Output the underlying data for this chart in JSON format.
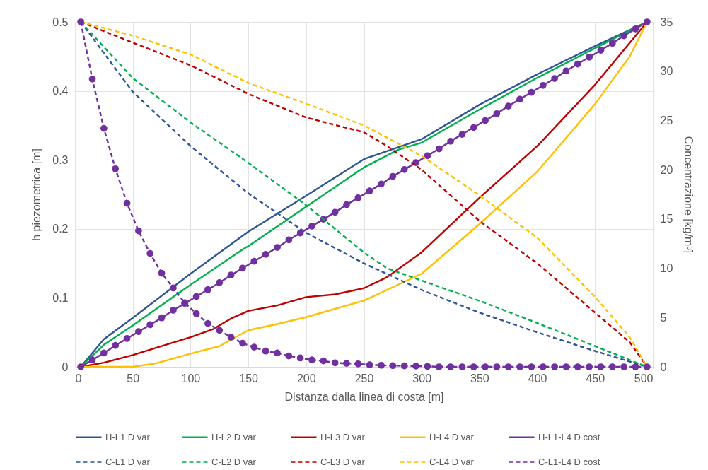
{
  "chart_data": {
    "type": "line",
    "xlabel": "Distanza dalla linea di costa [m]",
    "ylabel": "h piezometrica [m]",
    "y2label": "Concentrazione [kg/m³]",
    "xlim": [
      0,
      500
    ],
    "xticks": [
      0,
      50,
      100,
      150,
      200,
      250,
      300,
      350,
      400,
      450,
      500
    ],
    "ylim": [
      0,
      0.5
    ],
    "yticks": [
      0,
      0.1,
      0.2,
      0.3,
      0.4,
      0.5
    ],
    "y2lim": [
      0,
      35
    ],
    "y2ticks": [
      0,
      5,
      10,
      15,
      20,
      25,
      30,
      35
    ],
    "grid": true,
    "legend": "bottom",
    "series": [
      {
        "name": "H-L1 D var",
        "color": "#2f5597",
        "line_style": "solid",
        "marker": "none",
        "x": [
          5,
          25,
          50,
          100,
          150,
          200,
          250,
          300,
          350,
          400,
          450,
          495
        ],
        "values": [
          0,
          0.04,
          0.071,
          0.135,
          0.196,
          0.248,
          0.301,
          0.33,
          0.38,
          0.424,
          0.465,
          0.5
        ]
      },
      {
        "name": "H-L2 D var",
        "color": "#00b050",
        "line_style": "solid",
        "marker": "none",
        "x": [
          5,
          25,
          50,
          100,
          145,
          150,
          200,
          250,
          280,
          300,
          350,
          400,
          450,
          495
        ],
        "values": [
          0,
          0.032,
          0.06,
          0.119,
          0.17,
          0.175,
          0.232,
          0.289,
          0.315,
          0.325,
          0.373,
          0.419,
          0.462,
          0.5
        ]
      },
      {
        "name": "H-L3 D var",
        "color": "#c00000",
        "line_style": "solid",
        "marker": "none",
        "x": [
          5,
          25,
          50,
          75,
          100,
          120,
          135,
          150,
          175,
          200,
          225,
          250,
          270,
          300,
          350,
          400,
          450,
          495
        ],
        "values": [
          0,
          0.006,
          0.017,
          0.03,
          0.043,
          0.055,
          0.07,
          0.081,
          0.089,
          0.101,
          0.105,
          0.114,
          0.13,
          0.166,
          0.245,
          0.32,
          0.409,
          0.5
        ]
      },
      {
        "name": "H-L4 D var",
        "color": "#ffc000",
        "line_style": "solid",
        "marker": "none",
        "x": [
          5,
          50,
          70,
          100,
          125,
          150,
          175,
          200,
          250,
          300,
          350,
          400,
          450,
          480,
          495
        ],
        "values": [
          0,
          0,
          0.005,
          0.019,
          0.03,
          0.053,
          0.062,
          0.072,
          0.096,
          0.135,
          0.207,
          0.283,
          0.381,
          0.45,
          0.5
        ]
      },
      {
        "name": "H-L1-L4 D cost",
        "color": "#7030a0",
        "line_style": "solid",
        "marker": "circle",
        "x": [
          5,
          15,
          25,
          35,
          45,
          55,
          65,
          75,
          85,
          95,
          105,
          115,
          125,
          135,
          145,
          155,
          165,
          175,
          185,
          195,
          205,
          215,
          225,
          235,
          245,
          255,
          265,
          275,
          285,
          295,
          305,
          315,
          325,
          335,
          345,
          355,
          365,
          375,
          385,
          395,
          405,
          415,
          425,
          435,
          445,
          455,
          465,
          475,
          485,
          495
        ],
        "values": [
          0,
          0.01,
          0.02,
          0.031,
          0.041,
          0.051,
          0.061,
          0.071,
          0.082,
          0.092,
          0.102,
          0.112,
          0.122,
          0.133,
          0.143,
          0.153,
          0.163,
          0.173,
          0.184,
          0.194,
          0.204,
          0.214,
          0.224,
          0.235,
          0.245,
          0.255,
          0.265,
          0.276,
          0.286,
          0.296,
          0.306,
          0.316,
          0.327,
          0.337,
          0.347,
          0.357,
          0.367,
          0.378,
          0.388,
          0.398,
          0.408,
          0.418,
          0.429,
          0.439,
          0.449,
          0.459,
          0.469,
          0.48,
          0.49,
          0.5
        ]
      },
      {
        "name": "C-L1 D var",
        "color": "#2f5597",
        "line_style": "dashed",
        "marker": "none",
        "axis": "y2",
        "x": [
          5,
          50,
          100,
          150,
          200,
          250,
          300,
          350,
          400,
          450,
          495
        ],
        "values": [
          35,
          27.9,
          22.4,
          17.6,
          13.6,
          10.5,
          7.8,
          5.5,
          3.5,
          1.6,
          0
        ]
      },
      {
        "name": "C-L2  D var",
        "color": "#00b050",
        "line_style": "dashed",
        "marker": "none",
        "axis": "y2",
        "x": [
          5,
          50,
          100,
          150,
          200,
          250,
          270,
          300,
          350,
          400,
          450,
          495
        ],
        "values": [
          35,
          29.3,
          24.8,
          20.7,
          16.4,
          11.6,
          10,
          8.75,
          6.7,
          4.45,
          2.1,
          0
        ]
      },
      {
        "name": "C-L3  D var",
        "color": "#c00000",
        "line_style": "dashed",
        "marker": "none",
        "axis": "y2",
        "x": [
          5,
          50,
          100,
          150,
          200,
          250,
          270,
          300,
          350,
          400,
          450,
          480,
          495
        ],
        "values": [
          35,
          32.9,
          30.6,
          27.7,
          25.3,
          23.8,
          22.4,
          20,
          14.8,
          10.5,
          5.5,
          2.5,
          0
        ]
      },
      {
        "name": "C-L4  D var",
        "color": "#ffc000",
        "line_style": "dashed",
        "marker": "none",
        "axis": "y2",
        "x": [
          5,
          50,
          100,
          150,
          200,
          250,
          300,
          350,
          400,
          450,
          480,
          495
        ],
        "values": [
          35,
          33.6,
          31.7,
          28.8,
          26.7,
          24.5,
          21.4,
          17.4,
          13.1,
          7.1,
          3,
          0
        ]
      },
      {
        "name": "C-L1-L4 D cost",
        "color": "#7030a0",
        "line_style": "dashed",
        "marker": "circle",
        "axis": "y2",
        "x": [
          5,
          15,
          25,
          35,
          45,
          55,
          65,
          75,
          85,
          95,
          105,
          115,
          125,
          135,
          145,
          155,
          165,
          175,
          185,
          195,
          205,
          215,
          225,
          235,
          245,
          255,
          265,
          275,
          285,
          295,
          305,
          315,
          325,
          335,
          345,
          355,
          365,
          375,
          385,
          395,
          405,
          415,
          425,
          435,
          445,
          455,
          465,
          475,
          485,
          495
        ],
        "values": [
          35,
          29.2,
          24.2,
          20.1,
          16.6,
          13.8,
          11.5,
          9.5,
          8,
          6.5,
          5.4,
          4.4,
          3.7,
          3,
          2.4,
          2,
          1.6,
          1.4,
          1.1,
          0.9,
          0.7,
          0.6,
          0.4,
          0.35,
          0.3,
          0.2,
          0.15,
          0.12,
          0.1,
          0.08,
          0.05,
          0,
          0,
          0,
          0,
          0,
          0,
          0,
          0,
          0,
          0,
          0,
          0,
          0,
          0,
          0,
          0,
          0,
          0,
          0
        ]
      }
    ]
  }
}
